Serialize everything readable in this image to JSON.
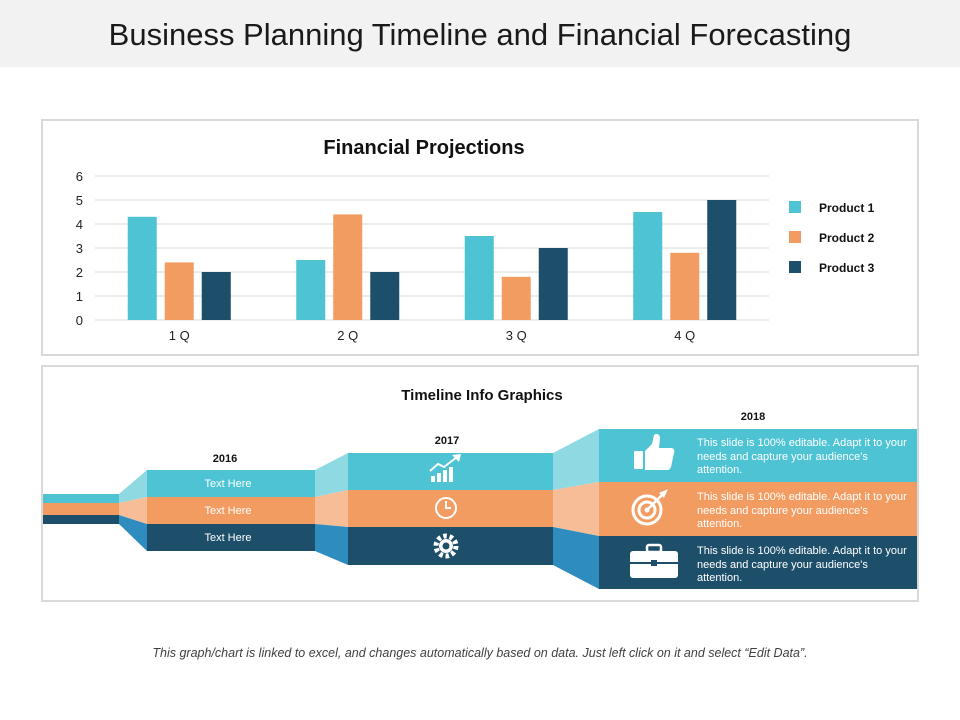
{
  "page": {
    "title": "Business Planning Timeline and Financial Forecasting",
    "footer": "This graph/chart is linked to excel, and changes automatically based on data. Just left click on it and select “Edit Data”."
  },
  "colors": {
    "product1": "#4DC3D3",
    "product2": "#F39C62",
    "product3": "#1D4F6B",
    "grid": "#d9d9d9"
  },
  "chart_data": {
    "type": "bar",
    "title": "Financial Projections",
    "categories": [
      "1 Q",
      "2 Q",
      "3 Q",
      "4 Q"
    ],
    "series": [
      {
        "name": "Product 1",
        "values": [
          4.3,
          2.5,
          3.5,
          4.5
        ]
      },
      {
        "name": "Product 2",
        "values": [
          2.4,
          4.4,
          1.8,
          2.8
        ]
      },
      {
        "name": "Product 3",
        "values": [
          2.0,
          2.0,
          3.0,
          5.0
        ]
      }
    ],
    "yticks": [
      "0",
      "1",
      "2",
      "3",
      "4",
      "5",
      "6"
    ],
    "ylim": [
      0,
      6
    ],
    "grid": true,
    "legend": "right",
    "xlabel": "",
    "ylabel": ""
  },
  "timeline": {
    "title": "Timeline Info Graphics",
    "years": [
      "2016",
      "2017",
      "2018"
    ],
    "text_labels": [
      "Text Here",
      "Text Here",
      "Text Here"
    ],
    "icons_2017": [
      "growth-chart-icon",
      "clock-icon",
      "gear-icon"
    ],
    "icons_2018": [
      "thumbs-up-icon",
      "target-icon",
      "briefcase-icon"
    ],
    "descriptions": [
      "This slide is 100% editable. Adapt it to your needs and capture your audience's attention.",
      "This slide is 100% editable. Adapt it to your needs and capture your audience's attention.",
      "This slide is 100% editable. Adapt it to your needs and capture your audience's attention."
    ]
  }
}
